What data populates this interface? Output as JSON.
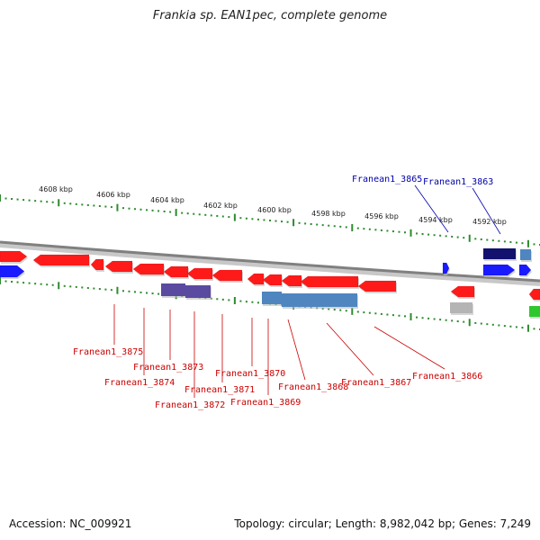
{
  "title": "Frankia sp. EAN1pec, complete genome",
  "footer": {
    "accession": "Accession: NC_009921",
    "summary": "Topology: circular; Length: 8,982,042 bp; Genes: 7,249"
  },
  "scale_labels": [
    "4608 kbp",
    "4606 kbp",
    "4604 kbp",
    "4602 kbp",
    "4600 kbp",
    "4598 kbp",
    "4596 kbp",
    "4594 kbp",
    "4592 kbp"
  ],
  "colors": {
    "backbone": "#808080",
    "forward_gene": "#1a1aff",
    "forward_dark": "#12126e",
    "reverse_gene": "#ff1a1a",
    "steel_gene": "#4f86c0",
    "purple_gene": "#5a4aa0",
    "gray_gene": "#b4b4b4",
    "green_gene": "#2ec82e",
    "tick": "#2e8b2e",
    "reverse_label": "#cc0000",
    "forward_label": "#0000aa"
  },
  "forward_labels": [
    "Franean1_3865",
    "Franean1_3863"
  ],
  "reverse_labels": [
    "Franean1_3875",
    "Franean1_3873",
    "Franean1_3874",
    "Franean1_3871",
    "Franean1_3872",
    "Franean1_3870",
    "Franean1_3869",
    "Franean1_3868",
    "Franean1_3867",
    "Franean1_3866"
  ]
}
